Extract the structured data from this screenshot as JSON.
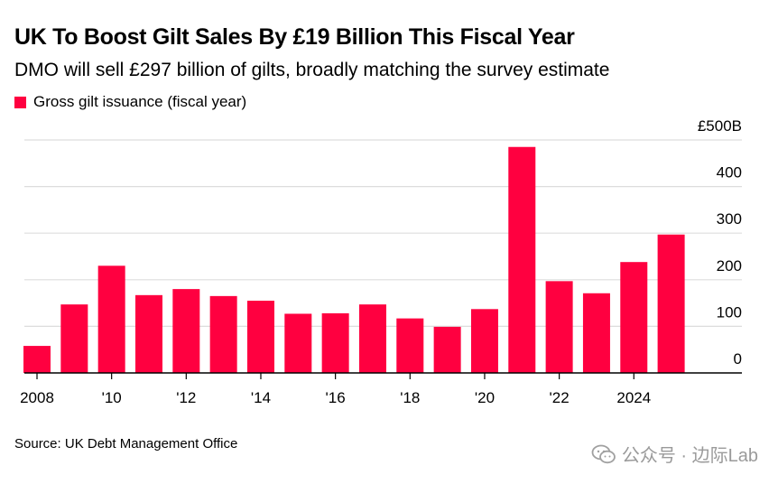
{
  "header": {
    "title": "UK To Boost Gilt Sales By £19 Billion This Fiscal Year",
    "subtitle": "DMO will sell £297 billion of gilts, broadly matching the survey estimate"
  },
  "footer": {
    "source": "Source: UK Debt Management Office",
    "watermark": "公众号 · 边际Lab"
  },
  "colors": {
    "bar": "#ff0040",
    "grid": "#dddddd",
    "axis": "#000000"
  },
  "chart_data": {
    "type": "bar",
    "legend": [
      "Gross gilt issuance (fiscal year)"
    ],
    "legend_position": "top-left",
    "x": [
      2008,
      2009,
      2010,
      2011,
      2012,
      2013,
      2014,
      2015,
      2016,
      2017,
      2018,
      2019,
      2020,
      2021,
      2022,
      2023,
      2024,
      2025
    ],
    "series": [
      {
        "name": "Gross gilt issuance (fiscal year)",
        "values": [
          58,
          147,
          230,
          167,
          180,
          165,
          155,
          127,
          128,
          147,
          117,
          99,
          137,
          485,
          197,
          171,
          238,
          297
        ]
      }
    ],
    "x_tick_labels": [
      "2008",
      "'10",
      "'12",
      "'14",
      "'16",
      "'18",
      "'20",
      "'22",
      "2024"
    ],
    "x_tick_years": [
      2008,
      2010,
      2012,
      2014,
      2016,
      2018,
      2020,
      2022,
      2024
    ],
    "y_tick_labels": [
      "0",
      "100",
      "200",
      "300",
      "400",
      "£500B"
    ],
    "y_ticks": [
      0,
      100,
      200,
      300,
      400,
      500
    ],
    "ylim": [
      0,
      500
    ],
    "grid": true,
    "y_axis_side": "right"
  }
}
